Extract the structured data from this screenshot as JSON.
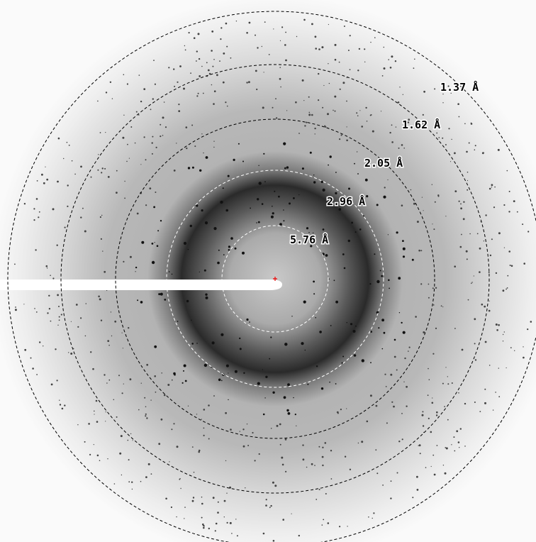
{
  "resolution_labels": [
    "5.76 Å",
    "2.96 Å",
    "2.05 Å",
    "1.62 Å",
    "1.37 Å"
  ]
}
